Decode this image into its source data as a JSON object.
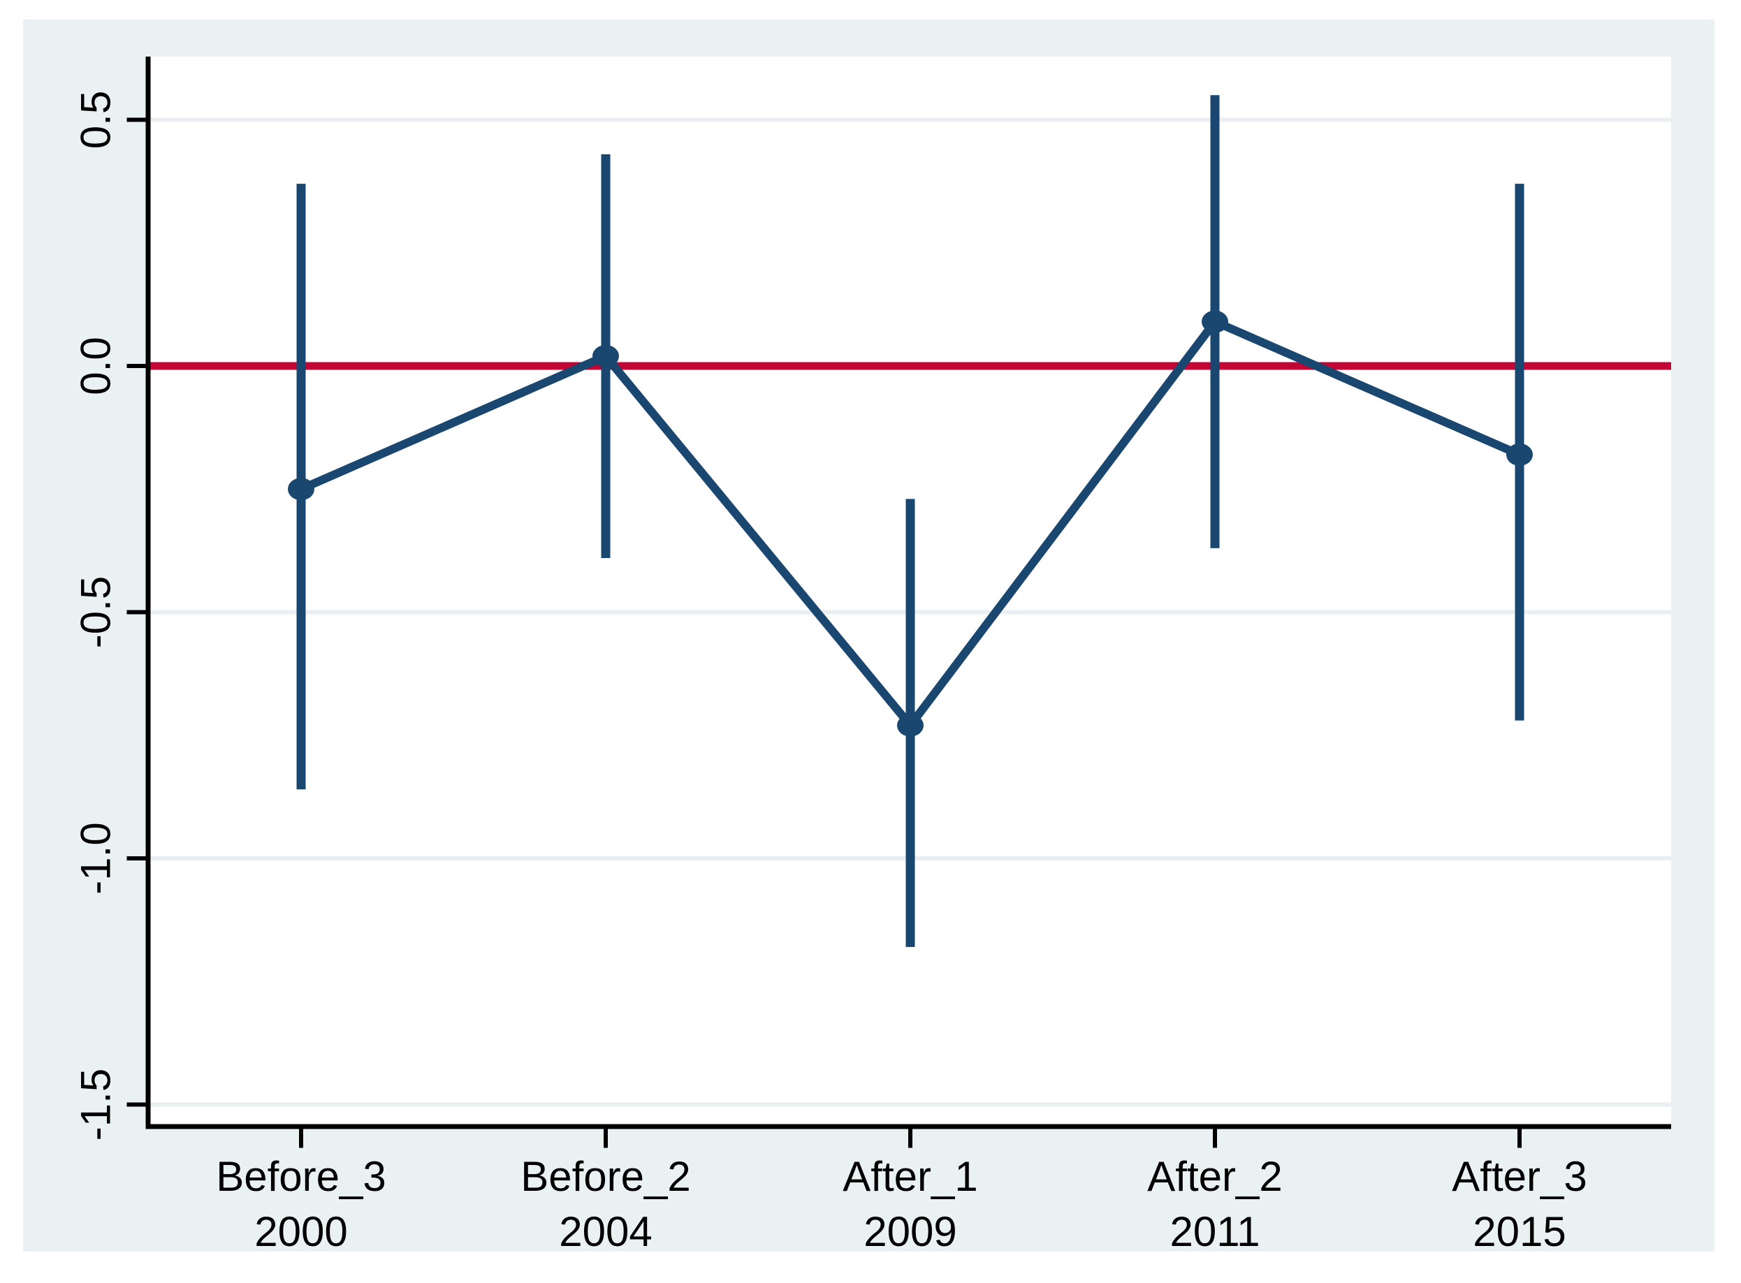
{
  "chart_data": {
    "type": "line",
    "subtype": "coefficient-plot-with-confidence-intervals",
    "title": "",
    "xlabel": "",
    "ylabel": "",
    "categories": [
      "Before_3",
      "Before_2",
      "After_1",
      "After_2",
      "After_3"
    ],
    "category_sublabels": [
      "2000",
      "2004",
      "2009",
      "2011",
      "2015"
    ],
    "series": [
      {
        "name": "estimate",
        "values": [
          -0.25,
          0.02,
          -0.73,
          0.09,
          -0.18
        ],
        "ci_low": [
          -0.86,
          -0.39,
          -1.18,
          -0.37,
          -0.72
        ],
        "ci_high": [
          0.37,
          0.43,
          -0.27,
          0.55,
          0.37
        ]
      }
    ],
    "reference_line_y": 0,
    "y_ticks": [
      0.5,
      0.0,
      -0.5,
      -1.0,
      -1.5
    ],
    "y_tick_labels": [
      "0.5",
      "0.0",
      "-0.5",
      "-1.0",
      "-1.5"
    ],
    "ylim": [
      -1.55,
      0.63
    ],
    "grid": true,
    "legend": "none",
    "marker": "filled-circle",
    "colors": {
      "estimate": "#1a476f",
      "reference_line": "#c10534",
      "gridline": "#e8eef1",
      "figure_background": "#eaf1f3",
      "plot_background": "#ffffff",
      "axis": "#000000",
      "tick_label": "#000000"
    }
  }
}
